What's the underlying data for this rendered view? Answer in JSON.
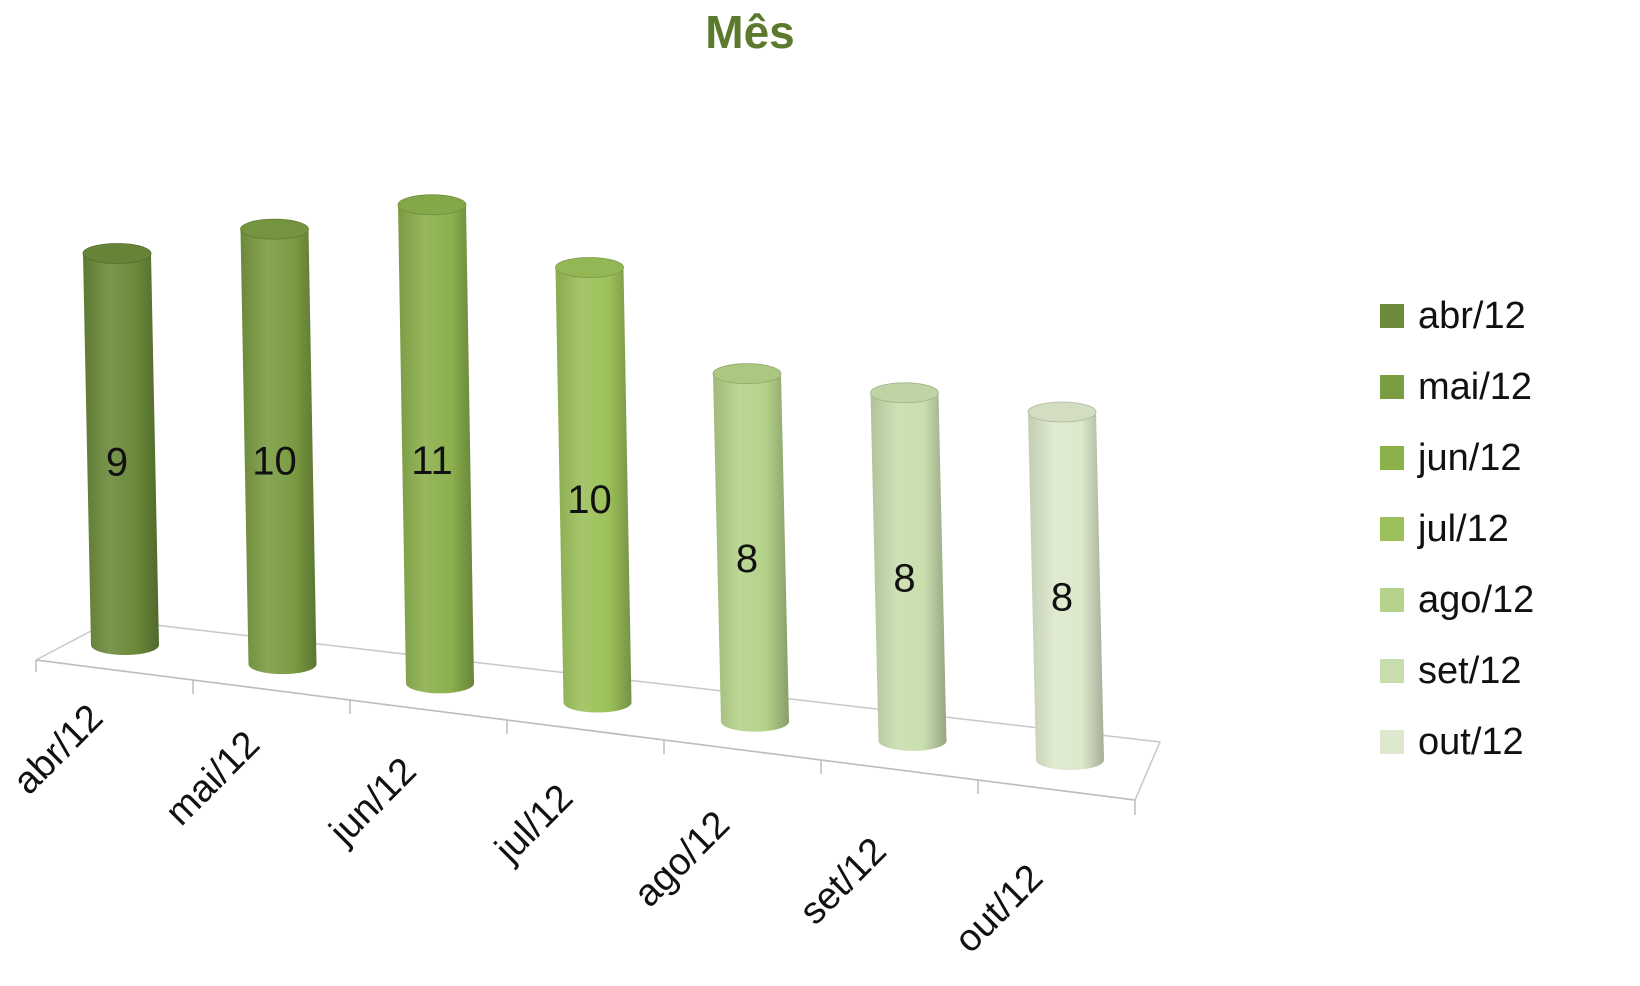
{
  "chart_data": {
    "type": "bar",
    "variant": "3d-cylinder",
    "title": "Mês",
    "title_color": "#5c7a2e",
    "xlabel": "",
    "ylabel": "",
    "categories": [
      "abr/12",
      "mai/12",
      "jun/12",
      "jul/12",
      "ago/12",
      "set/12",
      "out/12"
    ],
    "values": [
      9,
      10,
      11,
      10,
      8,
      8,
      8
    ],
    "colors": [
      "#6b8a3a",
      "#7a9c42",
      "#8bb04c",
      "#9cc15a",
      "#b4d28a",
      "#c9deae",
      "#dde9cc"
    ],
    "ylim": [
      0,
      12
    ],
    "grid": false,
    "data_labels": true,
    "legend": {
      "position": "right",
      "entries": [
        "abr/12",
        "mai/12",
        "jun/12",
        "jul/12",
        "ago/12",
        "set/12",
        "out/12"
      ]
    }
  }
}
